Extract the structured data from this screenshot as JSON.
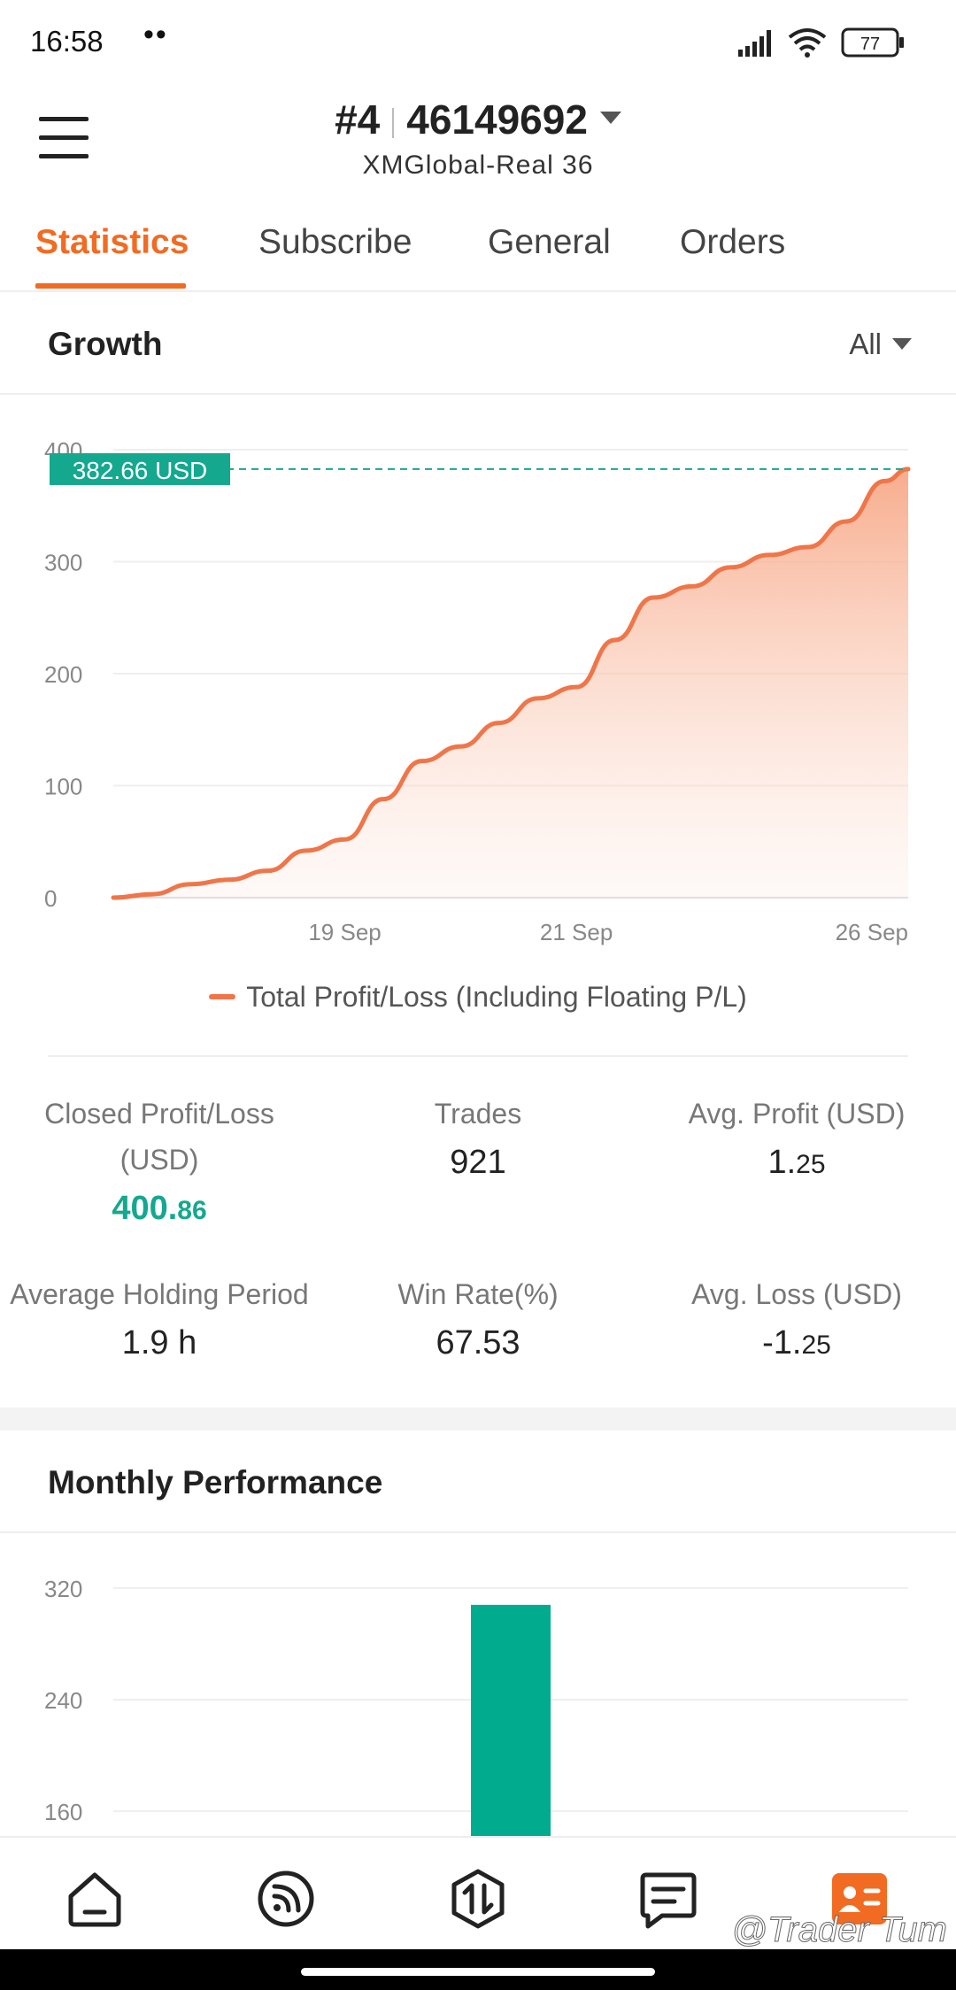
{
  "status_bar": {
    "time": "16:58",
    "dots": "••",
    "battery": "77"
  },
  "header": {
    "account_prefix": "#4",
    "account_number": "46149692",
    "server": "XMGlobal-Real 36"
  },
  "tabs": [
    {
      "label": "Statistics",
      "active": true
    },
    {
      "label": "Subscribe",
      "active": false
    },
    {
      "label": "General",
      "active": false
    },
    {
      "label": "Orders",
      "active": false
    }
  ],
  "growth": {
    "title": "Growth",
    "range": "All",
    "current_label": "382.66 USD",
    "legend": "Total Profit/Loss (Including Floating P/L)"
  },
  "stats": {
    "closed_pl_label": "Closed Profit/Loss (USD)",
    "closed_pl_int": "400.",
    "closed_pl_dec": "86",
    "trades_label": "Trades",
    "trades_value": "921",
    "avg_profit_label": "Avg. Profit (USD)",
    "avg_profit_int": "1.",
    "avg_profit_dec": "25",
    "avg_holding_label": "Average Holding Period",
    "avg_holding_value": "1.9 h",
    "win_rate_label": "Win Rate(%)",
    "win_rate_value": "67.53",
    "avg_loss_label": "Avg. Loss (USD)",
    "avg_loss_int": "-1.",
    "avg_loss_dec": "25"
  },
  "monthly": {
    "title": "Monthly Performance"
  },
  "watermark": "@Trader Tum",
  "colors": {
    "accent": "#f26b22",
    "line": "#f07548",
    "positive": "#14a88f",
    "bar": "#00ab8e"
  },
  "icons": [
    "home-icon",
    "signal-feed-icon",
    "trade-icon",
    "news-icon",
    "profile-card-icon"
  ],
  "chart_data": [
    {
      "type": "area",
      "title": "Growth",
      "series": [
        {
          "name": "Total Profit/Loss (Including Floating P/L)",
          "points": [
            [
              0,
              0
            ],
            [
              0.5,
              3
            ],
            [
              1,
              12
            ],
            [
              1.5,
              16
            ],
            [
              2,
              24
            ],
            [
              2.5,
              42
            ],
            [
              3,
              52
            ],
            [
              3.5,
              88
            ],
            [
              4,
              122
            ],
            [
              4.5,
              135
            ],
            [
              5,
              156
            ],
            [
              5.5,
              178
            ],
            [
              6,
              188
            ],
            [
              6.5,
              230
            ],
            [
              7,
              268
            ],
            [
              7.5,
              278
            ],
            [
              8,
              295
            ],
            [
              8.5,
              306
            ],
            [
              9,
              313
            ],
            [
              9.5,
              336
            ],
            [
              10,
              372
            ],
            [
              10.3,
              382.66
            ]
          ]
        }
      ],
      "x_ticks": [
        {
          "label": "19 Sep",
          "x": 3
        },
        {
          "label": "21 Sep",
          "x": 6
        },
        {
          "label": "26 Sep",
          "x": 10.3
        }
      ],
      "xlim": [
        0,
        10.3
      ],
      "y_ticks": [
        0,
        100,
        200,
        300,
        400
      ],
      "ylim": [
        0,
        400
      ],
      "grid": true,
      "current_value": 382.66
    },
    {
      "type": "bar",
      "title": "Monthly Performance",
      "y_ticks": [
        160,
        240,
        320
      ],
      "ylim": [
        160,
        320
      ],
      "values": [
        308
      ],
      "grid": true
    }
  ]
}
